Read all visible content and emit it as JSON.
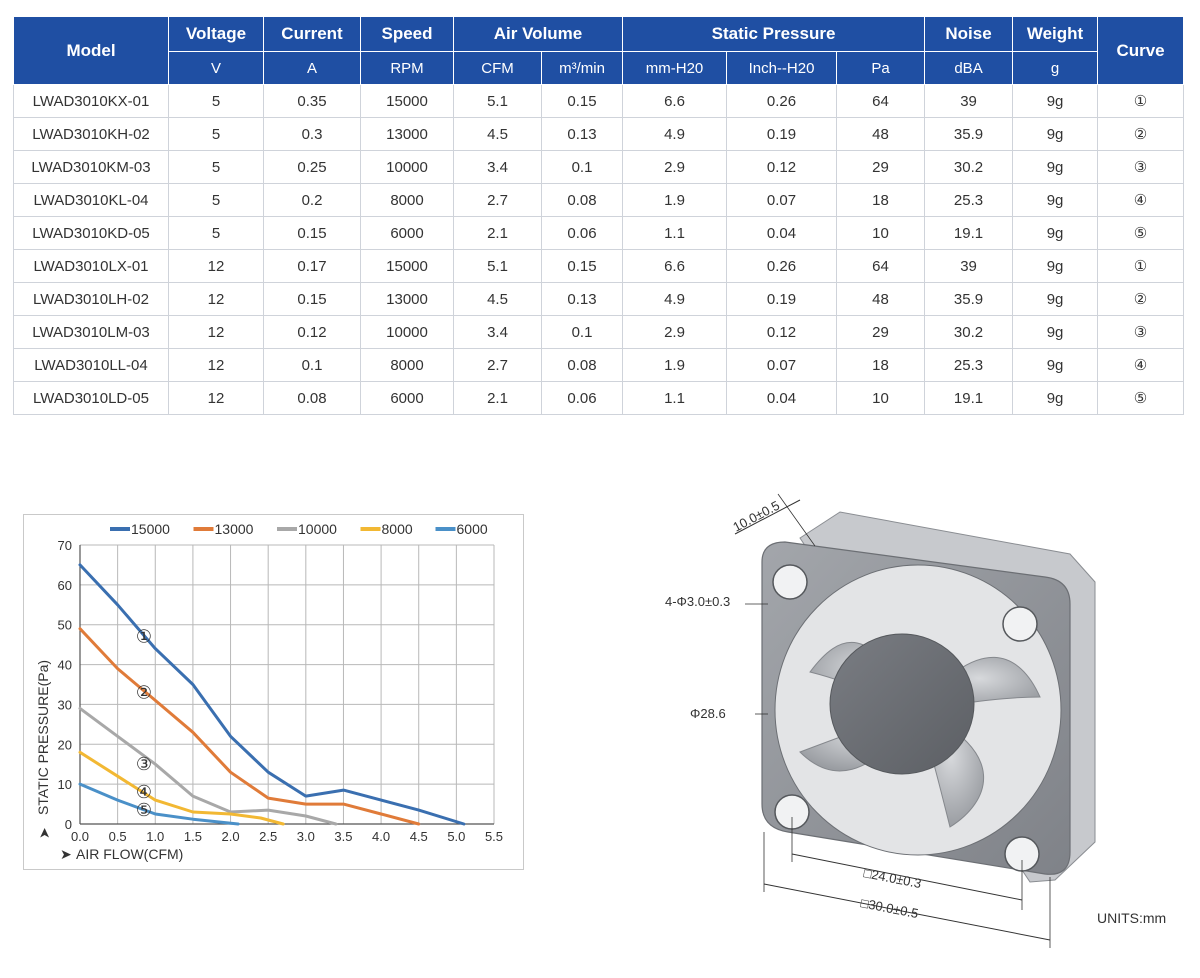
{
  "table": {
    "headers": {
      "model": "Model",
      "voltage": "Voltage",
      "current": "Current",
      "speed": "Speed",
      "air_volume": "Air Volume",
      "static_pressure": "Static Pressure",
      "noise": "Noise",
      "weight": "Weight",
      "curve": "Curve"
    },
    "units": [
      "V",
      "A",
      "RPM",
      "CFM",
      "m³/min",
      "mm-H20",
      "Inch--H20",
      "Pa",
      "dBA",
      "g"
    ],
    "rows": [
      [
        "LWAD3010KX-01",
        "5",
        "0.35",
        "15000",
        "5.1",
        "0.15",
        "6.6",
        "0.26",
        "64",
        "39",
        "9g",
        "①"
      ],
      [
        "LWAD3010KH-02",
        "5",
        "0.3",
        "13000",
        "4.5",
        "0.13",
        "4.9",
        "0.19",
        "48",
        "35.9",
        "9g",
        "②"
      ],
      [
        "LWAD3010KM-03",
        "5",
        "0.25",
        "10000",
        "3.4",
        "0.1",
        "2.9",
        "0.12",
        "29",
        "30.2",
        "9g",
        "③"
      ],
      [
        "LWAD3010KL-04",
        "5",
        "0.2",
        "8000",
        "2.7",
        "0.08",
        "1.9",
        "0.07",
        "18",
        "25.3",
        "9g",
        "④"
      ],
      [
        "LWAD3010KD-05",
        "5",
        "0.15",
        "6000",
        "2.1",
        "0.06",
        "1.1",
        "0.04",
        "10",
        "19.1",
        "9g",
        "⑤"
      ],
      [
        "LWAD3010LX-01",
        "12",
        "0.17",
        "15000",
        "5.1",
        "0.15",
        "6.6",
        "0.26",
        "64",
        "39",
        "9g",
        "①"
      ],
      [
        "LWAD3010LH-02",
        "12",
        "0.15",
        "13000",
        "4.5",
        "0.13",
        "4.9",
        "0.19",
        "48",
        "35.9",
        "9g",
        "②"
      ],
      [
        "LWAD3010LM-03",
        "12",
        "0.12",
        "10000",
        "3.4",
        "0.1",
        "2.9",
        "0.12",
        "29",
        "30.2",
        "9g",
        "③"
      ],
      [
        "LWAD3010LL-04",
        "12",
        "0.1",
        "8000",
        "2.7",
        "0.08",
        "1.9",
        "0.07",
        "18",
        "25.3",
        "9g",
        "④"
      ],
      [
        "LWAD3010LD-05",
        "12",
        "0.08",
        "6000",
        "2.1",
        "0.06",
        "1.1",
        "0.04",
        "10",
        "19.1",
        "9g",
        "⑤"
      ]
    ]
  },
  "chart_data": {
    "type": "line",
    "xlabel": "AIR FLOW(CFM)",
    "ylabel": "STATIC PRESSURE(Pa)",
    "xlim": [
      0,
      5.5
    ],
    "ylim": [
      0,
      70
    ],
    "x_ticks": [
      "0.0",
      "0.5",
      "1.0",
      "1.5",
      "2.0",
      "2.5",
      "3.0",
      "3.5",
      "4.0",
      "4.5",
      "5.0",
      "5.5"
    ],
    "y_ticks": [
      "0",
      "10",
      "20",
      "30",
      "40",
      "50",
      "60",
      "70"
    ],
    "grid": true,
    "legend_position": "top",
    "series": [
      {
        "name": "15000",
        "marker": "①",
        "marker_at": [
          0.85,
          47
        ],
        "color": "#3a6fb0",
        "points": [
          [
            0,
            65
          ],
          [
            0.5,
            55
          ],
          [
            1.0,
            44
          ],
          [
            1.5,
            35
          ],
          [
            2.0,
            22
          ],
          [
            2.5,
            13
          ],
          [
            3.0,
            7
          ],
          [
            3.5,
            8.5
          ],
          [
            4.0,
            6
          ],
          [
            4.5,
            3.5
          ],
          [
            5.1,
            0
          ]
        ]
      },
      {
        "name": "13000",
        "marker": "②",
        "marker_at": [
          0.85,
          33
        ],
        "color": "#e07b39",
        "points": [
          [
            0,
            49
          ],
          [
            0.5,
            39
          ],
          [
            1.0,
            31
          ],
          [
            1.5,
            23
          ],
          [
            2.0,
            13
          ],
          [
            2.5,
            6.5
          ],
          [
            3.0,
            5
          ],
          [
            3.5,
            5
          ],
          [
            4.0,
            2.5
          ],
          [
            4.5,
            0
          ]
        ]
      },
      {
        "name": "10000",
        "marker": "③",
        "marker_at": [
          0.85,
          15
        ],
        "color": "#a8a8a8",
        "points": [
          [
            0,
            29
          ],
          [
            0.5,
            22
          ],
          [
            1.0,
            15
          ],
          [
            1.5,
            7
          ],
          [
            2.0,
            3
          ],
          [
            2.5,
            3.5
          ],
          [
            3.0,
            2
          ],
          [
            3.4,
            0
          ]
        ]
      },
      {
        "name": "8000",
        "marker": "④",
        "marker_at": [
          0.85,
          8
        ],
        "color": "#f2b833",
        "points": [
          [
            0,
            18
          ],
          [
            0.5,
            12
          ],
          [
            1.0,
            6
          ],
          [
            1.5,
            3
          ],
          [
            2.0,
            2.5
          ],
          [
            2.4,
            1.5
          ],
          [
            2.7,
            0
          ]
        ]
      },
      {
        "name": "6000",
        "marker": "⑤",
        "marker_at": [
          0.85,
          3.5
        ],
        "color": "#4a90c8",
        "points": [
          [
            0,
            10
          ],
          [
            0.5,
            6
          ],
          [
            1.0,
            2.5
          ],
          [
            1.5,
            1.2
          ],
          [
            2.1,
            0
          ]
        ]
      }
    ]
  },
  "drawing": {
    "dimensions": {
      "depth": "10.0±0.5",
      "holes": "4-Φ3.0±0.3",
      "fan_dia": "Φ28.6",
      "hole_pitch": "□24.0±0.3",
      "frame": "□30.0±0.5"
    },
    "units": "UNITS:mm",
    "colors": {
      "frame": "#8d9096",
      "frame_top": "#a7aab0",
      "hub": "#6e7177",
      "blade": "#b4b7bc"
    }
  }
}
